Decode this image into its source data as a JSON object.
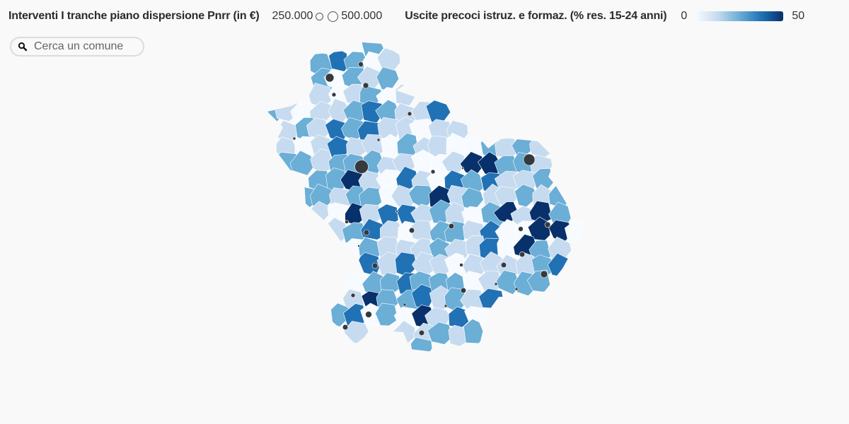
{
  "legend": {
    "size_title": "Interventi I tranche piano dispersione Pnrr (in €)",
    "size_small_label": "250.000",
    "size_large_label": "500.000",
    "color_title": "Uscite precoci istruz. e formaz. (% res. 15-24 anni)",
    "color_min_label": "0",
    "color_max_label": "50"
  },
  "search": {
    "placeholder": "Cerca un comune"
  },
  "colors": {
    "background": "#f9f9f9",
    "scale": [
      "#f7fbff",
      "#c6dbef",
      "#6baed6",
      "#2171b5",
      "#08306b"
    ],
    "bubble": "#36393d"
  }
}
